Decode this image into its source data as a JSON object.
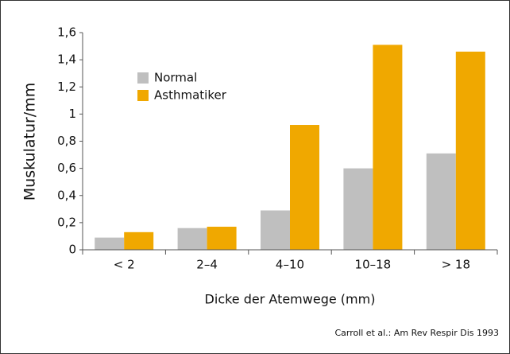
{
  "chart_data": {
    "type": "bar",
    "categories": [
      "< 2",
      "2–4",
      "4–10",
      "10–18",
      "> 18"
    ],
    "series": [
      {
        "name": "Normal",
        "color": "#bfbfbf",
        "values": [
          0.09,
          0.16,
          0.29,
          0.6,
          0.71
        ]
      },
      {
        "name": "Asthmatiker",
        "color": "#f0a800",
        "values": [
          0.13,
          0.17,
          0.92,
          1.51,
          1.46
        ]
      }
    ],
    "ylim": [
      0,
      1.6
    ],
    "yticks": [
      0,
      {
        "value": 0.2,
        "label": "0,2"
      },
      {
        "value": 0.4,
        "label": "0,4"
      },
      {
        "value": 0.6,
        "label": "0,6"
      },
      {
        "value": 0.8,
        "label": "0,8"
      },
      1,
      {
        "value": 1.2,
        "label": "1,2"
      },
      {
        "value": 1.4,
        "label": "1,4"
      },
      {
        "value": 1.6,
        "label": "1,6"
      }
    ],
    "y_label": "Muskulatur/mm",
    "x_label": "Dicke der Atemwege (mm)",
    "source": "Carroll et al.: Am Rev Respir Dis 1993",
    "legend": "upper-left",
    "grid": false
  }
}
